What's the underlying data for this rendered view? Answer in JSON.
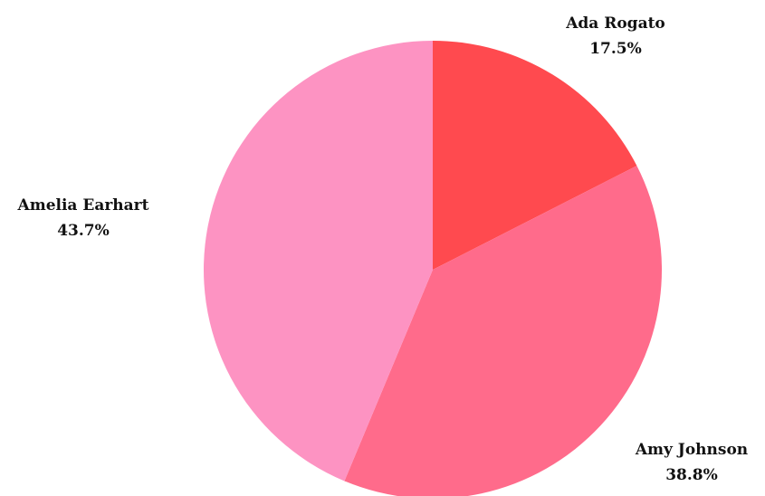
{
  "chart_data": {
    "type": "pie",
    "start_angle_deg": 0,
    "direction": "clockwise",
    "slices": [
      {
        "label": "Ada Rogato",
        "value": 17.5,
        "value_label": "17.5%",
        "color": "#ff4a4f"
      },
      {
        "label": "Amy Johnson",
        "value": 38.8,
        "value_label": "38.8%",
        "color": "#ff6b8b"
      },
      {
        "label": "Amelia Earhart",
        "value": 43.7,
        "value_label": "43.7%",
        "color": "#fd93c2"
      }
    ]
  }
}
